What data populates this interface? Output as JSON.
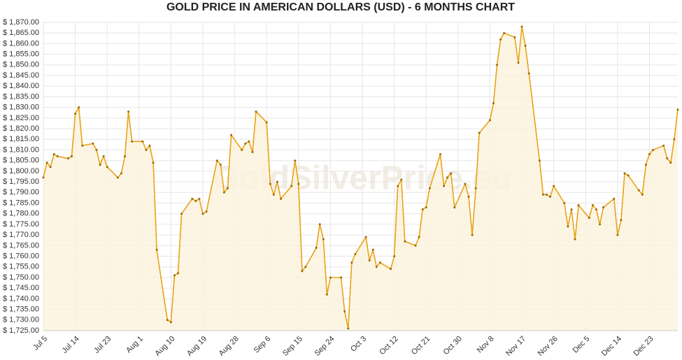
{
  "chart_data": {
    "type": "line",
    "title": "GOLD PRICE IN AMERICAN DOLLARS (USD) - 6 MONTHS CHART",
    "watermark": "GoldSilverPrice.eu",
    "x": [
      "Jul 5",
      "Jul 6",
      "Jul 7",
      "Jul 8",
      "Jul 9",
      "Jul 12",
      "Jul 13",
      "Jul 14",
      "Jul 15",
      "Jul 16",
      "Jul 19",
      "Jul 20",
      "Jul 21",
      "Jul 22",
      "Jul 23",
      "Jul 26",
      "Jul 27",
      "Jul 28",
      "Jul 29",
      "Jul 30",
      "Aug 2",
      "Aug 3",
      "Aug 4",
      "Aug 5",
      "Aug 6",
      "Aug 9",
      "Aug 10",
      "Aug 11",
      "Aug 12",
      "Aug 13",
      "Aug 16",
      "Aug 17",
      "Aug 18",
      "Aug 19",
      "Aug 20",
      "Aug 23",
      "Aug 24",
      "Aug 25",
      "Aug 26",
      "Aug 27",
      "Aug 30",
      "Aug 31",
      "Sep 1",
      "Sep 2",
      "Sep 3",
      "Sep 6",
      "Sep 7",
      "Sep 8",
      "Sep 9",
      "Sep 10",
      "Sep 13",
      "Sep 14",
      "Sep 15",
      "Sep 16",
      "Sep 17",
      "Sep 20",
      "Sep 21",
      "Sep 22",
      "Sep 23",
      "Sep 24",
      "Sep 27",
      "Sep 28",
      "Sep 29",
      "Sep 30",
      "Oct 1",
      "Oct 4",
      "Oct 5",
      "Oct 6",
      "Oct 7",
      "Oct 8",
      "Oct 11",
      "Oct 12",
      "Oct 13",
      "Oct 14",
      "Oct 15",
      "Oct 18",
      "Oct 19",
      "Oct 20",
      "Oct 21",
      "Oct 22",
      "Oct 25",
      "Oct 26",
      "Oct 27",
      "Oct 28",
      "Oct 29",
      "Nov 1",
      "Nov 2",
      "Nov 3",
      "Nov 4",
      "Nov 5",
      "Nov 8",
      "Nov 9",
      "Nov 10",
      "Nov 11",
      "Nov 12",
      "Nov 15",
      "Nov 16",
      "Nov 17",
      "Nov 18",
      "Nov 19",
      "Nov 22",
      "Nov 23",
      "Nov 24",
      "Nov 25",
      "Nov 26",
      "Nov 29",
      "Nov 30",
      "Dec 1",
      "Dec 2",
      "Dec 3",
      "Dec 6",
      "Dec 7",
      "Dec 8",
      "Dec 9",
      "Dec 10",
      "Dec 13",
      "Dec 14",
      "Dec 15",
      "Dec 16",
      "Dec 17",
      "Dec 20",
      "Dec 21",
      "Dec 22",
      "Dec 23",
      "Dec 24",
      "Dec 27",
      "Dec 28",
      "Dec 29",
      "Dec 30",
      "Dec 31"
    ],
    "series": [
      {
        "name": "Gold",
        "color": "#e8a317",
        "fill": "#fdf3dc",
        "point_color": "#9a6a00",
        "values": [
          1797,
          1804,
          1802,
          1808,
          1807,
          1806,
          1807,
          1827,
          1830,
          1812,
          1813,
          1810,
          1803,
          1807,
          1802,
          1797,
          1799,
          1807,
          1828,
          1814,
          1814,
          1810,
          1812,
          1804,
          1763,
          1730,
          1729,
          1751,
          1752,
          1780,
          1787,
          1786,
          1787,
          1780,
          1781,
          1805,
          1803,
          1790,
          1792,
          1817,
          1810,
          1813,
          1814,
          1809,
          1828,
          1823,
          1794,
          1789,
          1795,
          1787,
          1793,
          1805,
          1794,
          1753,
          1755,
          1764,
          1775,
          1768,
          1742,
          1750,
          1750,
          1734,
          1726,
          1757,
          1761,
          1769,
          1758,
          1763,
          1755,
          1757,
          1754,
          1760,
          1793,
          1796,
          1767,
          1765,
          1769,
          1782,
          1783,
          1792,
          1808,
          1793,
          1797,
          1799,
          1783,
          1794,
          1788,
          1770,
          1792,
          1818,
          1824,
          1832,
          1850,
          1862,
          1865,
          1863,
          1851,
          1868,
          1859,
          1846,
          1805,
          1789,
          1789,
          1788,
          1793,
          1785,
          1774,
          1782,
          1768,
          1784,
          1778,
          1784,
          1782,
          1775,
          1783,
          1787,
          1770,
          1777,
          1799,
          1798,
          1791,
          1789,
          1803,
          1808,
          1810,
          1812,
          1806,
          1804,
          1815,
          1829
        ]
      }
    ],
    "xticks": [
      "Jul 5",
      "Jul 14",
      "Jul 23",
      "Aug 1",
      "Aug 10",
      "Aug 19",
      "Aug 28",
      "Sep 6",
      "Sep 15",
      "Sep 24",
      "Oct 3",
      "Oct 12",
      "Oct 21",
      "Oct 30",
      "Nov 8",
      "Nov 17",
      "Nov 26",
      "Dec 5",
      "Dec 14",
      "Dec 23"
    ],
    "ylim": [
      1725,
      1870
    ],
    "yticks": [
      {
        "value": 1725,
        "label": "$ 1,725.00"
      },
      {
        "value": 1730,
        "label": "$ 1,730.00"
      },
      {
        "value": 1735,
        "label": "$ 1,735.00"
      },
      {
        "value": 1740,
        "label": "$ 1,740.00"
      },
      {
        "value": 1745,
        "label": "$ 1,745.00"
      },
      {
        "value": 1750,
        "label": "$ 1,750.00"
      },
      {
        "value": 1755,
        "label": "$ 1,755.00"
      },
      {
        "value": 1760,
        "label": "$ 1,760.00"
      },
      {
        "value": 1765,
        "label": "$ 1,765.00"
      },
      {
        "value": 1770,
        "label": "$ 1,770.00"
      },
      {
        "value": 1775,
        "label": "$ 1,775.00"
      },
      {
        "value": 1780,
        "label": "$ 1,780.00"
      },
      {
        "value": 1785,
        "label": "$ 1,785.00"
      },
      {
        "value": 1790,
        "label": "$ 1,790.00"
      },
      {
        "value": 1795,
        "label": "$ 1,795.00"
      },
      {
        "value": 1800,
        "label": "$ 1,800.00"
      },
      {
        "value": 1805,
        "label": "$ 1,805.00"
      },
      {
        "value": 1810,
        "label": "$ 1,810.00"
      },
      {
        "value": 1815,
        "label": "$ 1,815.00"
      },
      {
        "value": 1820,
        "label": "$ 1,820.00"
      },
      {
        "value": 1825,
        "label": "$ 1,825.00"
      },
      {
        "value": 1830,
        "label": "$ 1,830.00"
      },
      {
        "value": 1835,
        "label": "$ 1,835.00"
      },
      {
        "value": 1840,
        "label": "$ 1,840.00"
      },
      {
        "value": 1845,
        "label": "$ 1,845.00"
      },
      {
        "value": 1850,
        "label": "$ 1,850.00"
      },
      {
        "value": 1855,
        "label": "$ 1,855.00"
      },
      {
        "value": 1860,
        "label": "$ 1,860.00"
      },
      {
        "value": 1865,
        "label": "$ 1,865.00"
      },
      {
        "value": 1870,
        "label": "$ 1,870.00"
      }
    ],
    "grid": true
  }
}
